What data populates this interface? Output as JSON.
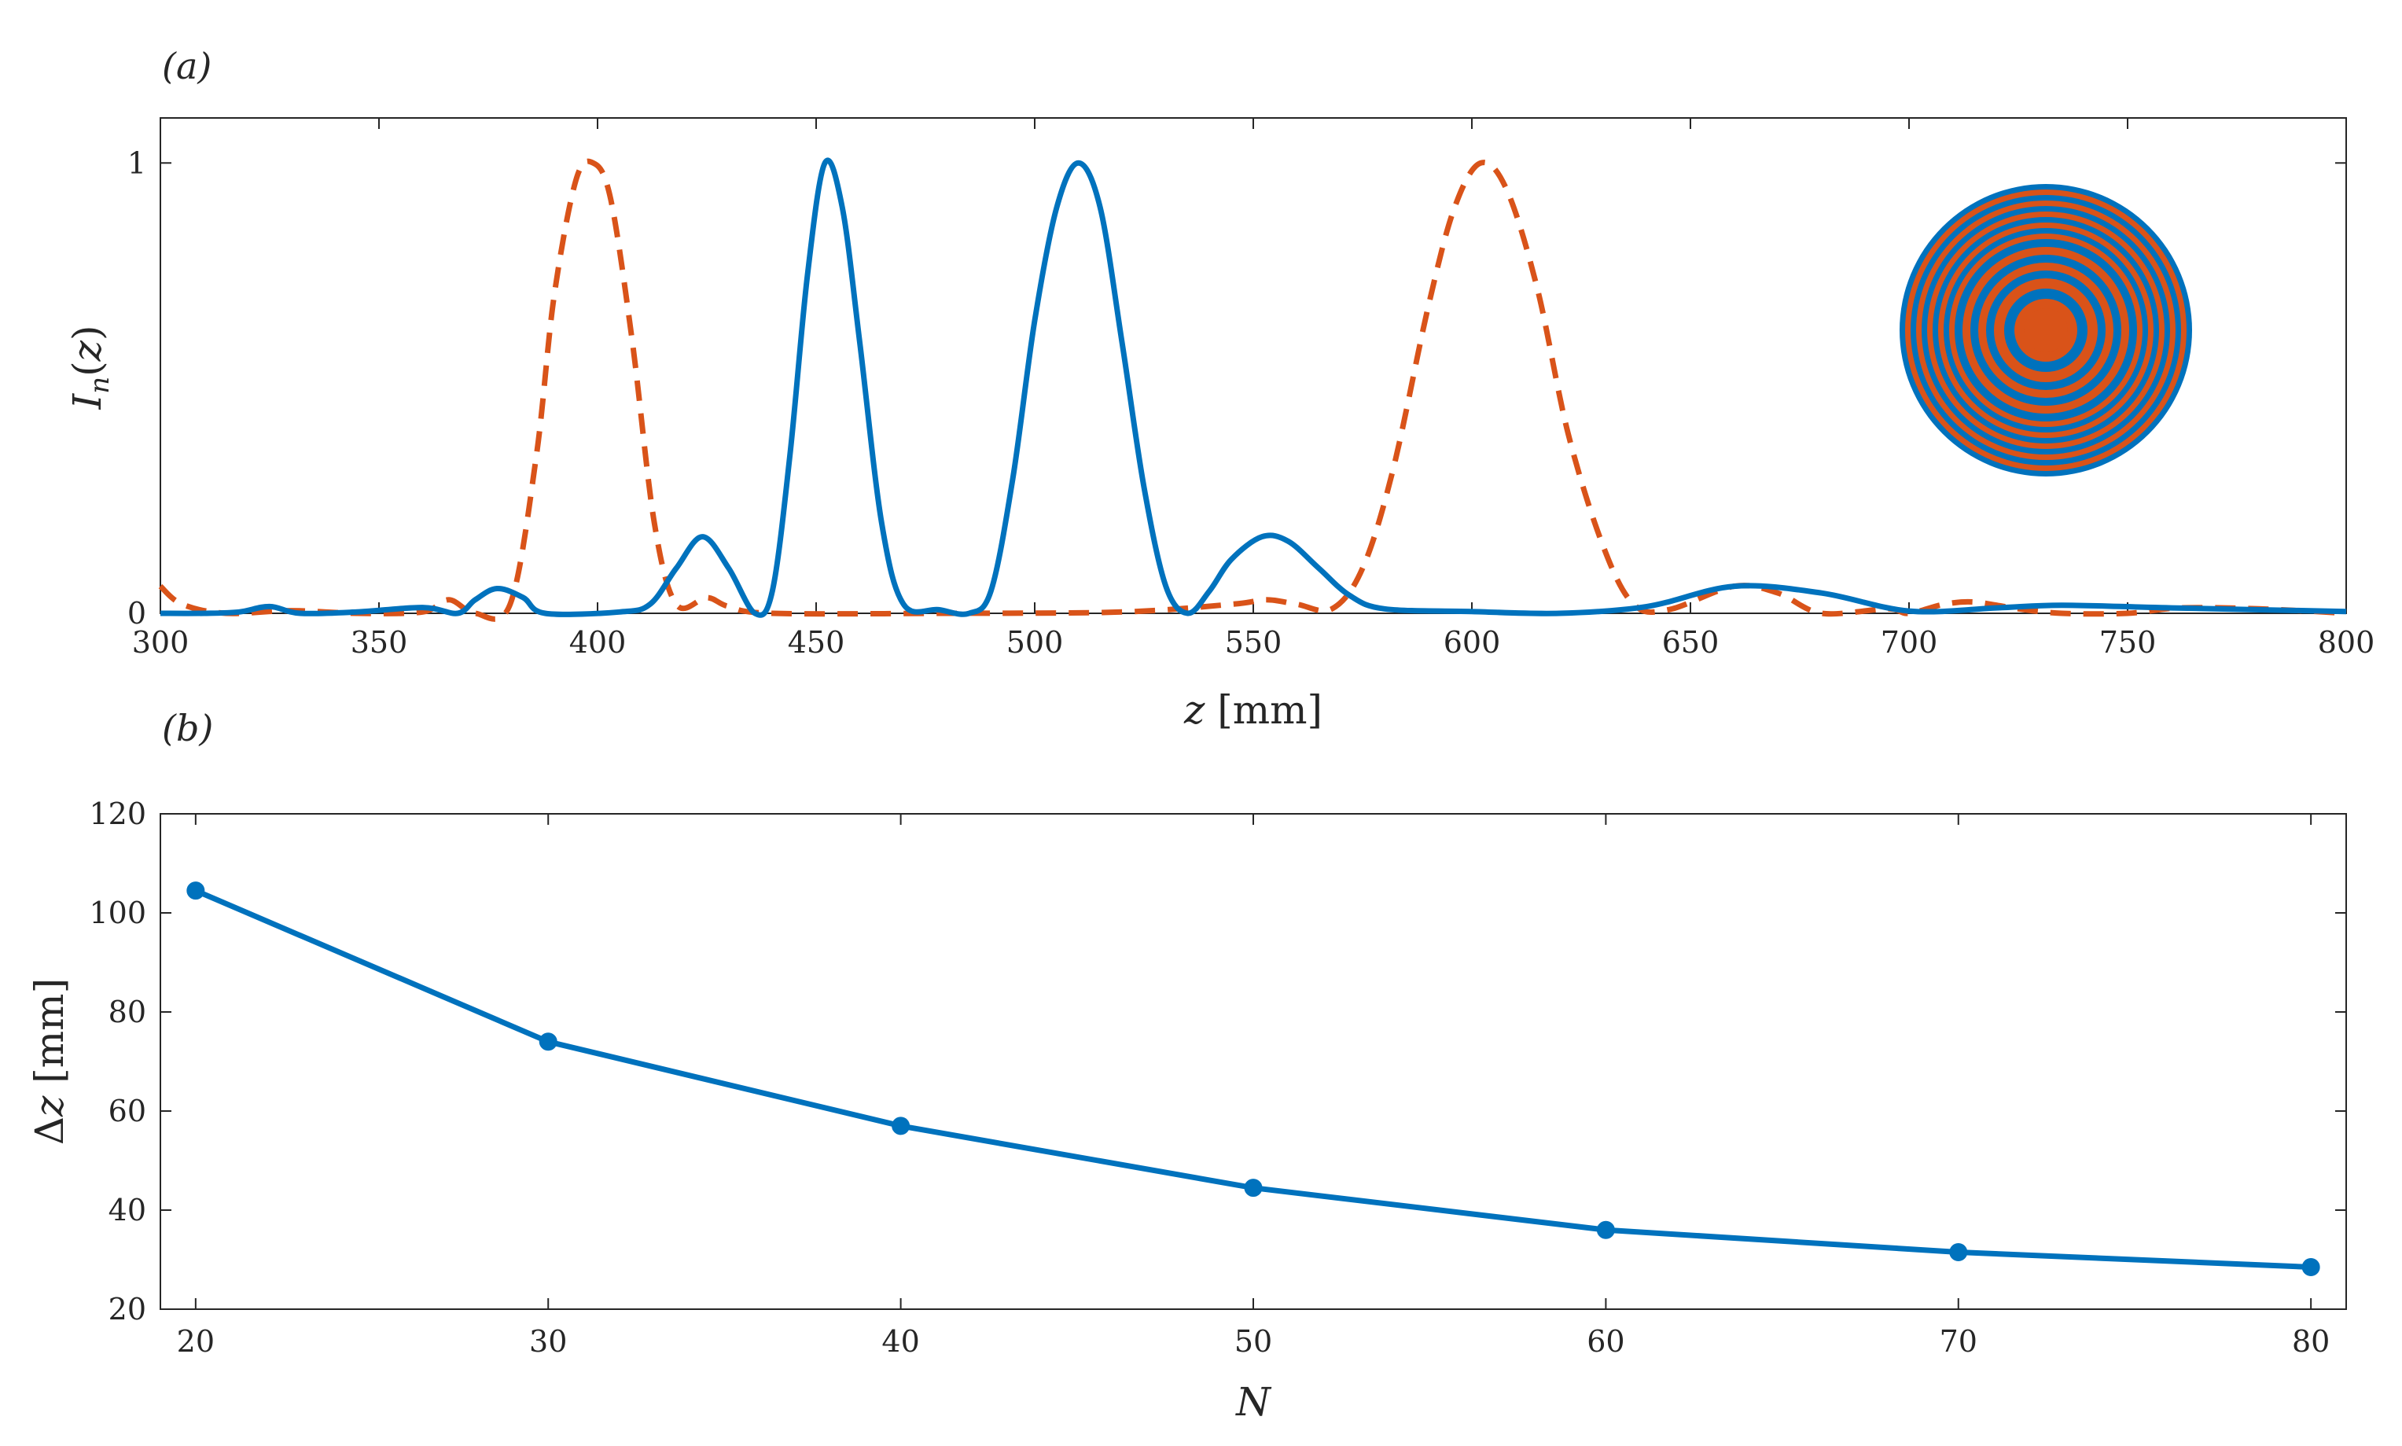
{
  "chart_data": [
    {
      "panel_label": "(a)",
      "type": "line",
      "xlabel": "z [mm]",
      "ylabel": "I_n(z)",
      "xlim": [
        300,
        800
      ],
      "ylim": [
        0,
        1.1
      ],
      "xticks": [
        "300",
        "350",
        "400",
        "450",
        "500",
        "550",
        "600",
        "650",
        "700",
        "750",
        "800"
      ],
      "yticks": [
        "0",
        "1"
      ],
      "grid": false,
      "series": [
        {
          "style": "solid",
          "color": "#0072BD",
          "points": [
            [
              300,
              0.0
            ],
            [
              310,
              0.0
            ],
            [
              318,
              0.003
            ],
            [
              325,
              0.015
            ],
            [
              332,
              0.0
            ],
            [
              345,
              0.003
            ],
            [
              360,
              0.013
            ],
            [
              368,
              0.0
            ],
            [
              372,
              0.03
            ],
            [
              377,
              0.055
            ],
            [
              383,
              0.035
            ],
            [
              388,
              0.0
            ],
            [
              405,
              0.003
            ],
            [
              412,
              0.02
            ],
            [
              418,
              0.1
            ],
            [
              424,
              0.17
            ],
            [
              430,
              0.1
            ],
            [
              436,
              0.0
            ],
            [
              440,
              0.05
            ],
            [
              444,
              0.35
            ],
            [
              448,
              0.75
            ],
            [
              452,
              1.0
            ],
            [
              456,
              0.9
            ],
            [
              460,
              0.6
            ],
            [
              465,
              0.2
            ],
            [
              470,
              0.02
            ],
            [
              478,
              0.008
            ],
            [
              485,
              0.0
            ],
            [
              490,
              0.05
            ],
            [
              495,
              0.3
            ],
            [
              500,
              0.65
            ],
            [
              505,
              0.9
            ],
            [
              510,
              1.0
            ],
            [
              515,
              0.9
            ],
            [
              520,
              0.6
            ],
            [
              525,
              0.28
            ],
            [
              530,
              0.06
            ],
            [
              535,
              0.0
            ],
            [
              540,
              0.05
            ],
            [
              545,
              0.12
            ],
            [
              552,
              0.17
            ],
            [
              558,
              0.16
            ],
            [
              565,
              0.1
            ],
            [
              572,
              0.04
            ],
            [
              580,
              0.01
            ],
            [
              600,
              0.004
            ],
            [
              620,
              0.0
            ],
            [
              640,
              0.015
            ],
            [
              660,
              0.06
            ],
            [
              680,
              0.045
            ],
            [
              700,
              0.005
            ],
            [
              720,
              0.012
            ],
            [
              735,
              0.018
            ],
            [
              760,
              0.012
            ],
            [
              800,
              0.004
            ]
          ]
        },
        {
          "style": "dashed",
          "color": "#D95319",
          "points": [
            [
              300,
              0.06
            ],
            [
              305,
              0.02
            ],
            [
              315,
              0.0
            ],
            [
              330,
              0.006
            ],
            [
              345,
              0.0
            ],
            [
              360,
              0.003
            ],
            [
              366,
              0.03
            ],
            [
              372,
              0.0
            ],
            [
              380,
              0.02
            ],
            [
              386,
              0.35
            ],
            [
              390,
              0.7
            ],
            [
              395,
              0.96
            ],
            [
              399,
              1.0
            ],
            [
              403,
              0.92
            ],
            [
              408,
              0.6
            ],
            [
              413,
              0.2
            ],
            [
              418,
              0.02
            ],
            [
              425,
              0.035
            ],
            [
              430,
              0.015
            ],
            [
              440,
              0.0
            ],
            [
              480,
              0.0
            ],
            [
              520,
              0.003
            ],
            [
              545,
              0.02
            ],
            [
              553,
              0.03
            ],
            [
              560,
              0.02
            ],
            [
              568,
              0.01
            ],
            [
              575,
              0.1
            ],
            [
              582,
              0.32
            ],
            [
              590,
              0.68
            ],
            [
              596,
              0.9
            ],
            [
              602,
              1.0
            ],
            [
              608,
              0.94
            ],
            [
              615,
              0.72
            ],
            [
              622,
              0.4
            ],
            [
              630,
              0.15
            ],
            [
              637,
              0.02
            ],
            [
              645,
              0.008
            ],
            [
              660,
              0.06
            ],
            [
              670,
              0.045
            ],
            [
              680,
              0.0
            ],
            [
              695,
              0.01
            ],
            [
              700,
              0.0
            ],
            [
              708,
              0.02
            ],
            [
              715,
              0.025
            ],
            [
              725,
              0.01
            ],
            [
              735,
              0.0
            ],
            [
              750,
              0.0
            ],
            [
              762,
              0.012
            ],
            [
              780,
              0.01
            ],
            [
              800,
              0.0
            ]
          ]
        }
      ],
      "inset": {
        "description_colors": [
          "#0072BD",
          "#D95319"
        ]
      }
    },
    {
      "panel_label": "(b)",
      "type": "line",
      "xlabel": "N",
      "ylabel": "Δz [mm]",
      "xlim": [
        19,
        81
      ],
      "ylim": [
        20,
        120
      ],
      "xticks": [
        "20",
        "30",
        "40",
        "50",
        "60",
        "70",
        "80"
      ],
      "yticks": [
        "20",
        "40",
        "60",
        "80",
        "100",
        "120"
      ],
      "grid": false,
      "series": [
        {
          "style": "solid-markers",
          "color": "#0072BD",
          "x": [
            20,
            30,
            40,
            50,
            60,
            70,
            80
          ],
          "y": [
            104.5,
            74,
            57,
            44.5,
            36,
            31.5,
            28.5
          ]
        }
      ]
    }
  ]
}
